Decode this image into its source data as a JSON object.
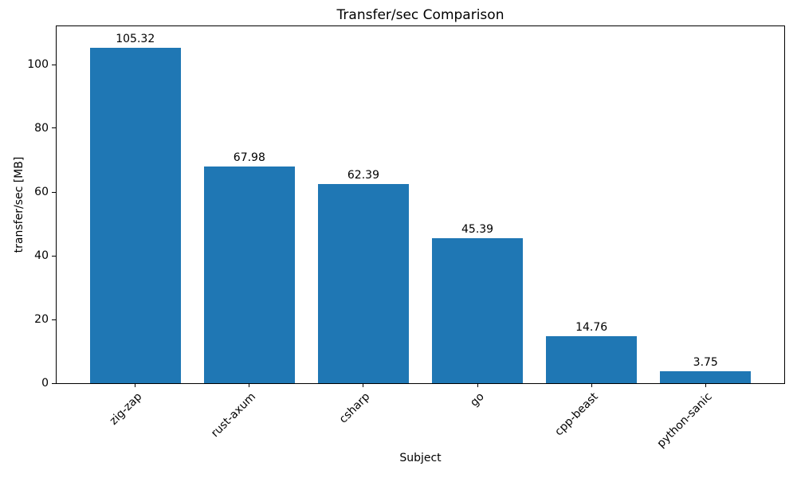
{
  "chart_data": {
    "type": "bar",
    "title": "Transfer/sec Comparison",
    "xlabel": "Subject",
    "ylabel": "transfer/sec [MB]",
    "categories": [
      "zig-zap",
      "rust-axum",
      "csharp",
      "go",
      "cpp-beast",
      "python-sanic"
    ],
    "values": [
      105.32,
      67.98,
      62.39,
      45.39,
      14.76,
      3.75
    ],
    "bar_labels": [
      "105.32",
      "67.98",
      "62.39",
      "45.39",
      "14.76",
      "3.75"
    ],
    "yticks": [
      0,
      20,
      40,
      60,
      80,
      100
    ],
    "ylim": [
      0,
      112
    ],
    "grid": false,
    "legend": null,
    "colors": {
      "bar": "#1f77b4",
      "text": "#000000",
      "spine": "#000000",
      "background": "#ffffff"
    }
  }
}
